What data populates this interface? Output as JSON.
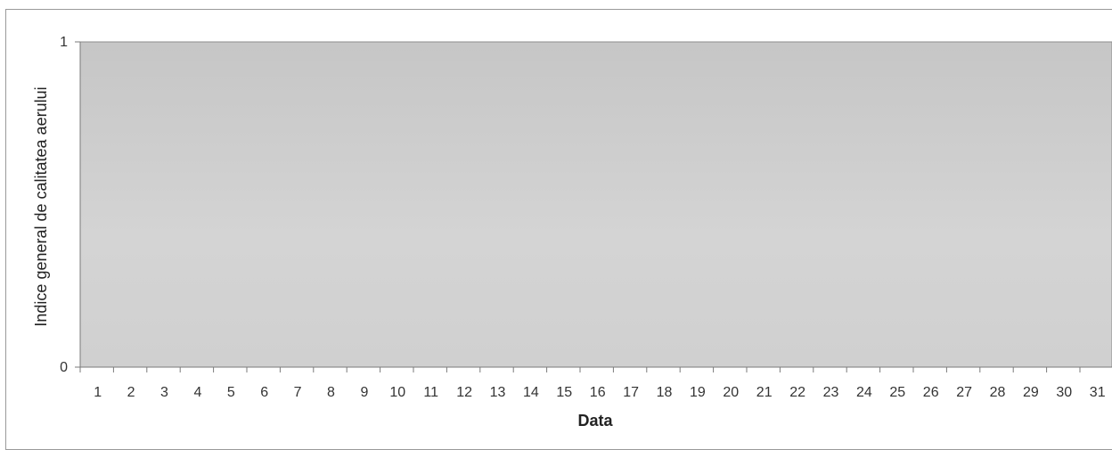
{
  "chart_data": {
    "type": "area",
    "title": "",
    "xlabel": "Data",
    "ylabel": "Indice general de calitatea aerului",
    "categories": [
      "1",
      "2",
      "3",
      "4",
      "5",
      "6",
      "7",
      "8",
      "9",
      "10",
      "11",
      "12",
      "13",
      "14",
      "15",
      "16",
      "17",
      "18",
      "19",
      "20",
      "21",
      "22",
      "23",
      "24",
      "25",
      "26",
      "27",
      "28",
      "29",
      "30",
      "31"
    ],
    "series": [
      {
        "values": [
          1,
          1,
          1,
          1,
          1,
          1,
          1,
          1,
          1,
          1,
          1,
          1,
          1,
          1,
          1,
          1,
          1,
          1,
          1,
          1,
          1,
          1,
          1,
          1,
          1,
          1,
          1,
          1,
          1,
          1,
          1
        ]
      }
    ],
    "yticks": [
      "0",
      "1"
    ],
    "ylim": [
      0,
      1
    ],
    "grid": false,
    "legend": "none",
    "colors": {
      "area": "#cfcfcf",
      "axis": "#7a7a7a"
    }
  }
}
